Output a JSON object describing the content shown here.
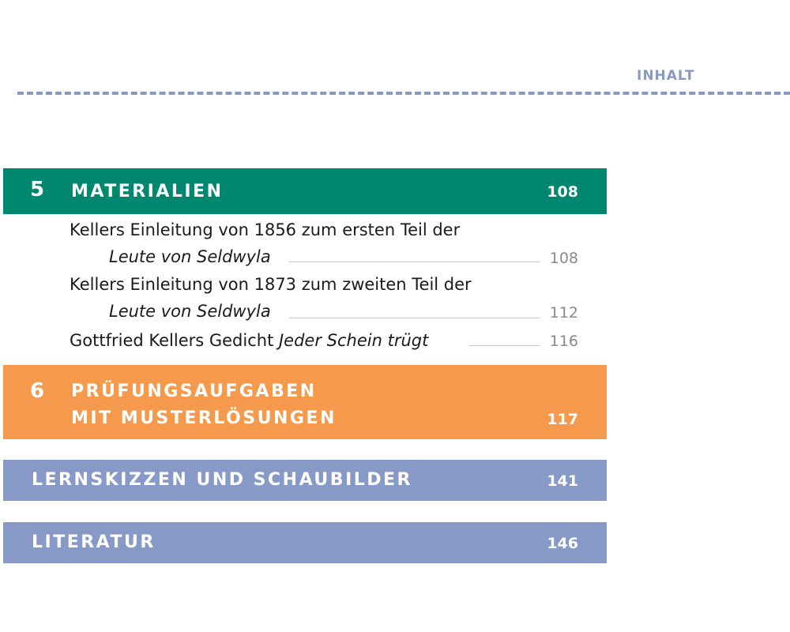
{
  "header": {
    "label": "INHALT",
    "accent_color": "#8799c2"
  },
  "sections": [
    {
      "number": "5",
      "title": "MATERIALIEN",
      "page": "108",
      "color": "#00876f",
      "entries": [
        {
          "line1": "Kellers Einleitung von 1856 zum ersten Teil der",
          "line2_italic": "Leute von Seldwyla",
          "page": "108"
        },
        {
          "line1": "Kellers Einleitung von 1873 zum zweiten Teil der",
          "line2_italic": "Leute von Seldwyla",
          "page": "112"
        },
        {
          "text": "Gottfried Kellers Gedicht ",
          "text_italic": "Jeder Schein trügt",
          "page": "116"
        }
      ]
    },
    {
      "number": "6",
      "title_line1": "PRÜFUNGSAUFGABEN",
      "title_line2": "MIT MUSTERLÖSUNGEN",
      "page": "117",
      "color": "#f5994c"
    },
    {
      "title": "LERNSKIZZEN UND SCHAUBILDER",
      "page": "141",
      "color": "#8799c6"
    },
    {
      "title": "LITERATUR",
      "page": "146",
      "color": "#8799c6"
    }
  ]
}
